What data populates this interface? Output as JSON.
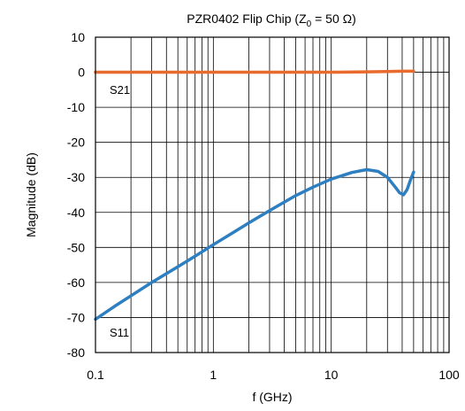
{
  "chart_data": {
    "type": "line",
    "title_main": "PZR0402 Flip Chip (Z",
    "title_sub": "0",
    "title_rest": " = 50 Ω)",
    "xlabel": "f (GHz)",
    "ylabel": "Magnitude (dB)",
    "x_scale": "log",
    "xlim": [
      0.1,
      100
    ],
    "ylim": [
      -80,
      10
    ],
    "x_tick_labels": [
      "0.1",
      "1",
      "10",
      "100"
    ],
    "x_tick_values": [
      0.1,
      1,
      10,
      100
    ],
    "y_tick_labels": [
      "10",
      "0",
      "-10",
      "-20",
      "-30",
      "-40",
      "-50",
      "-60",
      "-70",
      "-80"
    ],
    "y_tick_values": [
      10,
      0,
      -10,
      -20,
      -30,
      -40,
      -50,
      -60,
      -70,
      -80
    ],
    "grid": true,
    "series": [
      {
        "name": "S21",
        "color": "#E86A2C",
        "x": [
          0.1,
          0.2,
          0.5,
          1,
          2,
          5,
          10,
          20,
          30,
          40,
          50
        ],
        "y": [
          0,
          0,
          0,
          0,
          0,
          0,
          0,
          0.1,
          0.2,
          0.3,
          0.3
        ]
      },
      {
        "name": "S11",
        "color": "#2E7FC1",
        "x": [
          0.1,
          0.15,
          0.2,
          0.3,
          0.5,
          0.7,
          1,
          1.5,
          2,
          3,
          5,
          7,
          10,
          15,
          20,
          25,
          30,
          35,
          38,
          41,
          44,
          47,
          50
        ],
        "y": [
          -70.5,
          -66.5,
          -63.8,
          -60,
          -55.5,
          -52.5,
          -49.2,
          -45.6,
          -43,
          -39.5,
          -35.2,
          -32.8,
          -30.5,
          -28.6,
          -27.8,
          -28.3,
          -30,
          -32.8,
          -34.4,
          -35,
          -33.5,
          -30.8,
          -28.5
        ]
      }
    ]
  }
}
